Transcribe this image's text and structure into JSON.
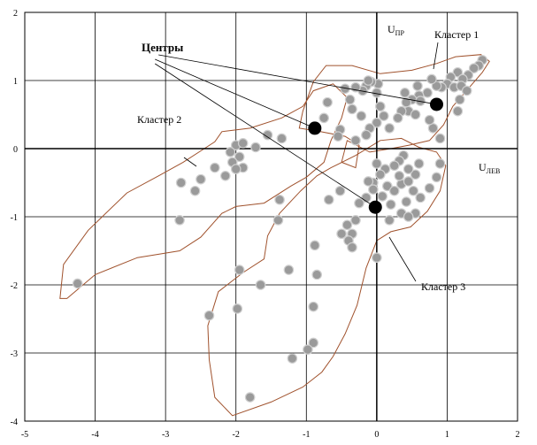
{
  "chart_data": {
    "type": "scatter",
    "title": "",
    "xlim": [
      -5,
      2
    ],
    "ylim": [
      -4,
      2
    ],
    "x_ticks": [
      "-5",
      "-4",
      "-3",
      "-2",
      "-1",
      "0",
      "1",
      "2"
    ],
    "y_ticks": [
      "2",
      "1",
      "0",
      "-1",
      "-2",
      "-3",
      "-4"
    ],
    "grid": true,
    "axis_names": {
      "u_right": "U",
      "u_right_sub": "ПР",
      "u_left": "U",
      "u_left_sub": "ЛЕВ"
    },
    "annotations": {
      "centers": "Центры",
      "cluster1": "Кластер 1",
      "cluster2": "Кластер 2",
      "cluster3": "Кластер 3"
    },
    "centers": [
      {
        "x": -0.88,
        "y": 0.3
      },
      {
        "x": 0.85,
        "y": 0.65
      },
      {
        "x": -0.02,
        "y": -0.86
      }
    ],
    "points": [
      [
        1.5,
        1.3
      ],
      [
        1.45,
        1.22
      ],
      [
        1.38,
        1.18
      ],
      [
        1.3,
        1.08
      ],
      [
        1.15,
        1.12
      ],
      [
        1.22,
        1.02
      ],
      [
        1.05,
        1.05
      ],
      [
        1.0,
        0.95
      ],
      [
        0.92,
        0.9
      ],
      [
        0.85,
        0.92
      ],
      [
        1.1,
        0.9
      ],
      [
        1.2,
        0.92
      ],
      [
        1.28,
        0.85
      ],
      [
        0.78,
        1.02
      ],
      [
        0.72,
        0.82
      ],
      [
        0.6,
        0.78
      ],
      [
        0.5,
        0.72
      ],
      [
        0.42,
        0.68
      ],
      [
        0.45,
        0.55
      ],
      [
        0.35,
        0.55
      ],
      [
        0.3,
        0.45
      ],
      [
        0.55,
        0.5
      ],
      [
        0.4,
        0.82
      ],
      [
        0.58,
        0.92
      ],
      [
        0.62,
        0.7
      ],
      [
        0.02,
        0.95
      ],
      [
        -0.08,
        0.98
      ],
      [
        -0.15,
        0.92
      ],
      [
        -0.2,
        0.85
      ],
      [
        -0.3,
        0.9
      ],
      [
        -0.12,
        1.0
      ],
      [
        0.0,
        0.82
      ],
      [
        0.05,
        0.62
      ],
      [
        0.1,
        0.48
      ],
      [
        0.0,
        0.38
      ],
      [
        -0.1,
        0.3
      ],
      [
        0.18,
        0.3
      ],
      [
        -0.22,
        0.48
      ],
      [
        -0.35,
        0.58
      ],
      [
        -0.38,
        0.72
      ],
      [
        -0.52,
        0.28
      ],
      [
        -0.55,
        0.18
      ],
      [
        -0.3,
        0.12
      ],
      [
        -0.15,
        0.2
      ],
      [
        -0.75,
        0.45
      ],
      [
        -0.7,
        0.68
      ],
      [
        -0.45,
        0.88
      ],
      [
        0.8,
        0.3
      ],
      [
        0.9,
        0.15
      ],
      [
        0.75,
        0.42
      ],
      [
        1.18,
        0.72
      ],
      [
        1.15,
        0.55
      ],
      [
        0.38,
        -0.1
      ],
      [
        0.32,
        -0.18
      ],
      [
        0.25,
        -0.25
      ],
      [
        0.12,
        -0.3
      ],
      [
        0.05,
        -0.38
      ],
      [
        -0.05,
        -0.5
      ],
      [
        0.15,
        -0.55
      ],
      [
        0.25,
        -0.62
      ],
      [
        0.35,
        -0.52
      ],
      [
        0.45,
        -0.48
      ],
      [
        0.55,
        -0.38
      ],
      [
        0.6,
        -0.22
      ],
      [
        0.52,
        -0.62
      ],
      [
        0.42,
        -0.78
      ],
      [
        0.35,
        -0.95
      ],
      [
        0.2,
        -0.82
      ],
      [
        0.08,
        -0.7
      ],
      [
        -0.05,
        -0.6
      ],
      [
        -0.15,
        -0.72
      ],
      [
        -0.25,
        -0.8
      ],
      [
        -0.3,
        -1.05
      ],
      [
        -0.42,
        -1.12
      ],
      [
        -0.5,
        -1.25
      ],
      [
        -0.35,
        -1.25
      ],
      [
        -0.4,
        -1.35
      ],
      [
        -0.35,
        -1.45
      ],
      [
        0.62,
        -0.72
      ],
      [
        0.75,
        -0.58
      ],
      [
        0.85,
        -0.42
      ],
      [
        0.9,
        -0.22
      ],
      [
        0.18,
        -1.05
      ],
      [
        0.55,
        -0.95
      ],
      [
        0.45,
        -1.0
      ],
      [
        0.32,
        -0.4
      ],
      [
        -0.12,
        -0.48
      ],
      [
        0.0,
        -0.22
      ],
      [
        0.45,
        -0.3
      ],
      [
        -0.52,
        -0.62
      ],
      [
        -0.68,
        -0.75
      ],
      [
        -1.38,
        -0.75
      ],
      [
        -1.4,
        -1.05
      ],
      [
        -0.0,
        -1.6
      ],
      [
        -0.88,
        -1.42
      ],
      [
        -0.85,
        -1.85
      ],
      [
        -1.25,
        -1.78
      ],
      [
        -1.65,
        -2.0
      ],
      [
        -1.95,
        -1.78
      ],
      [
        -0.9,
        -2.32
      ],
      [
        -1.98,
        -2.35
      ],
      [
        -2.38,
        -2.45
      ],
      [
        -0.9,
        -2.85
      ],
      [
        -0.98,
        -2.95
      ],
      [
        -1.2,
        -3.08
      ],
      [
        -1.8,
        -3.65
      ],
      [
        -2.0,
        0.05
      ],
      [
        -2.08,
        -0.05
      ],
      [
        -1.95,
        -0.12
      ],
      [
        -2.05,
        -0.2
      ],
      [
        -1.9,
        0.08
      ],
      [
        -1.72,
        0.02
      ],
      [
        -1.9,
        -0.28
      ],
      [
        -2.0,
        -0.3
      ],
      [
        -2.15,
        -0.4
      ],
      [
        -2.3,
        -0.28
      ],
      [
        -2.5,
        -0.45
      ],
      [
        -2.78,
        -0.5
      ],
      [
        -2.58,
        -0.62
      ],
      [
        -1.55,
        0.2
      ],
      [
        -1.35,
        0.15
      ],
      [
        -2.8,
        -1.05
      ],
      [
        -4.25,
        -1.98
      ]
    ],
    "cluster_outlines": [
      {
        "name": "Кластер 1",
        "points": [
          [
            -1.05,
            0.55
          ],
          [
            -0.9,
            0.98
          ],
          [
            -0.72,
            1.22
          ],
          [
            -0.35,
            1.22
          ],
          [
            0.05,
            1.1
          ],
          [
            0.5,
            1.15
          ],
          [
            0.85,
            1.25
          ],
          [
            1.12,
            1.35
          ],
          [
            1.48,
            1.38
          ],
          [
            1.6,
            1.28
          ],
          [
            1.5,
            1.12
          ],
          [
            1.3,
            0.88
          ],
          [
            1.08,
            0.62
          ],
          [
            0.95,
            0.35
          ],
          [
            0.75,
            0.12
          ],
          [
            0.45,
            0.05
          ],
          [
            0.2,
            0.0
          ],
          [
            -0.1,
            -0.05
          ],
          [
            -0.42,
            0.12
          ],
          [
            -0.5,
            -0.2
          ],
          [
            -0.3,
            -0.28
          ],
          [
            -0.25,
            0.05
          ],
          [
            -0.45,
            0.18
          ],
          [
            -0.8,
            0.25
          ],
          [
            -1.1,
            0.3
          ]
        ]
      },
      {
        "name": "Кластер 2",
        "points": [
          [
            -4.5,
            -2.2
          ],
          [
            -4.45,
            -1.7
          ],
          [
            -4.1,
            -1.2
          ],
          [
            -3.55,
            -0.65
          ],
          [
            -3.1,
            -0.4
          ],
          [
            -2.75,
            -0.2
          ],
          [
            -2.45,
            0.0
          ],
          [
            -2.3,
            0.1
          ],
          [
            -2.2,
            0.25
          ],
          [
            -1.8,
            0.3
          ],
          [
            -1.35,
            0.45
          ],
          [
            -1.05,
            0.62
          ],
          [
            -0.9,
            0.85
          ],
          [
            -0.62,
            0.95
          ],
          [
            -0.42,
            0.75
          ],
          [
            -0.5,
            0.45
          ],
          [
            -0.65,
            0.12
          ],
          [
            -0.75,
            -0.2
          ],
          [
            -1.0,
            -0.42
          ],
          [
            -1.22,
            -0.55
          ],
          [
            -1.6,
            -0.8
          ],
          [
            -2.0,
            -0.85
          ],
          [
            -2.2,
            -0.95
          ],
          [
            -2.5,
            -1.3
          ],
          [
            -2.8,
            -1.5
          ],
          [
            -3.4,
            -1.6
          ],
          [
            -4.0,
            -1.85
          ],
          [
            -4.4,
            -2.2
          ]
        ]
      },
      {
        "name": "Кластер 3",
        "points": [
          [
            -0.65,
            -0.28
          ],
          [
            -0.3,
            -0.1
          ],
          [
            0.05,
            0.12
          ],
          [
            0.35,
            0.15
          ],
          [
            0.6,
            0.02
          ],
          [
            0.85,
            -0.05
          ],
          [
            0.98,
            -0.25
          ],
          [
            0.9,
            -0.62
          ],
          [
            0.72,
            -0.92
          ],
          [
            0.48,
            -1.15
          ],
          [
            0.2,
            -1.22
          ],
          [
            0.0,
            -1.35
          ],
          [
            -0.15,
            -1.75
          ],
          [
            -0.28,
            -2.3
          ],
          [
            -0.45,
            -2.72
          ],
          [
            -0.62,
            -3.05
          ],
          [
            -0.78,
            -3.28
          ],
          [
            -1.05,
            -3.5
          ],
          [
            -1.5,
            -3.72
          ],
          [
            -2.05,
            -3.92
          ],
          [
            -2.3,
            -3.65
          ],
          [
            -2.38,
            -3.1
          ],
          [
            -2.4,
            -2.6
          ],
          [
            -2.25,
            -2.1
          ],
          [
            -1.9,
            -1.82
          ],
          [
            -1.6,
            -1.62
          ],
          [
            -1.55,
            -1.28
          ],
          [
            -1.38,
            -0.95
          ],
          [
            -1.08,
            -0.62
          ],
          [
            -0.85,
            -0.4
          ]
        ]
      }
    ]
  }
}
